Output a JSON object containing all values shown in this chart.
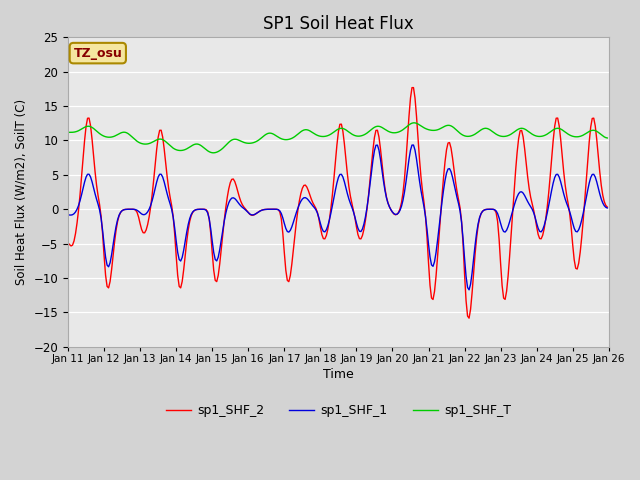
{
  "title": "SP1 Soil Heat Flux",
  "xlabel": "Time",
  "ylabel": "Soil Heat Flux (W/m2), SoilT (C)",
  "ylim": [
    -20,
    25
  ],
  "tick_labels": [
    "Jan 11",
    "Jan 12",
    "Jan 13",
    "Jan 14",
    "Jan 15",
    "Jan 16",
    "Jan 17",
    "Jan 18",
    "Jan 19",
    "Jan 20",
    "Jan 21",
    "Jan 22",
    "Jan 23",
    "Jan 24",
    "Jan 25",
    "Jan 26"
  ],
  "legend_labels": [
    "sp1_SHF_2",
    "sp1_SHF_1",
    "sp1_SHF_T"
  ],
  "line_colors": [
    "#ff0000",
    "#0000dd",
    "#00cc00"
  ],
  "bg_color": "#d3d3d3",
  "plot_bg_color": "#e8e8e8",
  "annotation_text": "TZ_osu",
  "annotation_color": "#880000",
  "annotation_bg": "#f5e6a0",
  "annotation_border": "#aa8800",
  "yticks": [
    -20,
    -15,
    -10,
    -5,
    0,
    5,
    10,
    15,
    20,
    25
  ]
}
